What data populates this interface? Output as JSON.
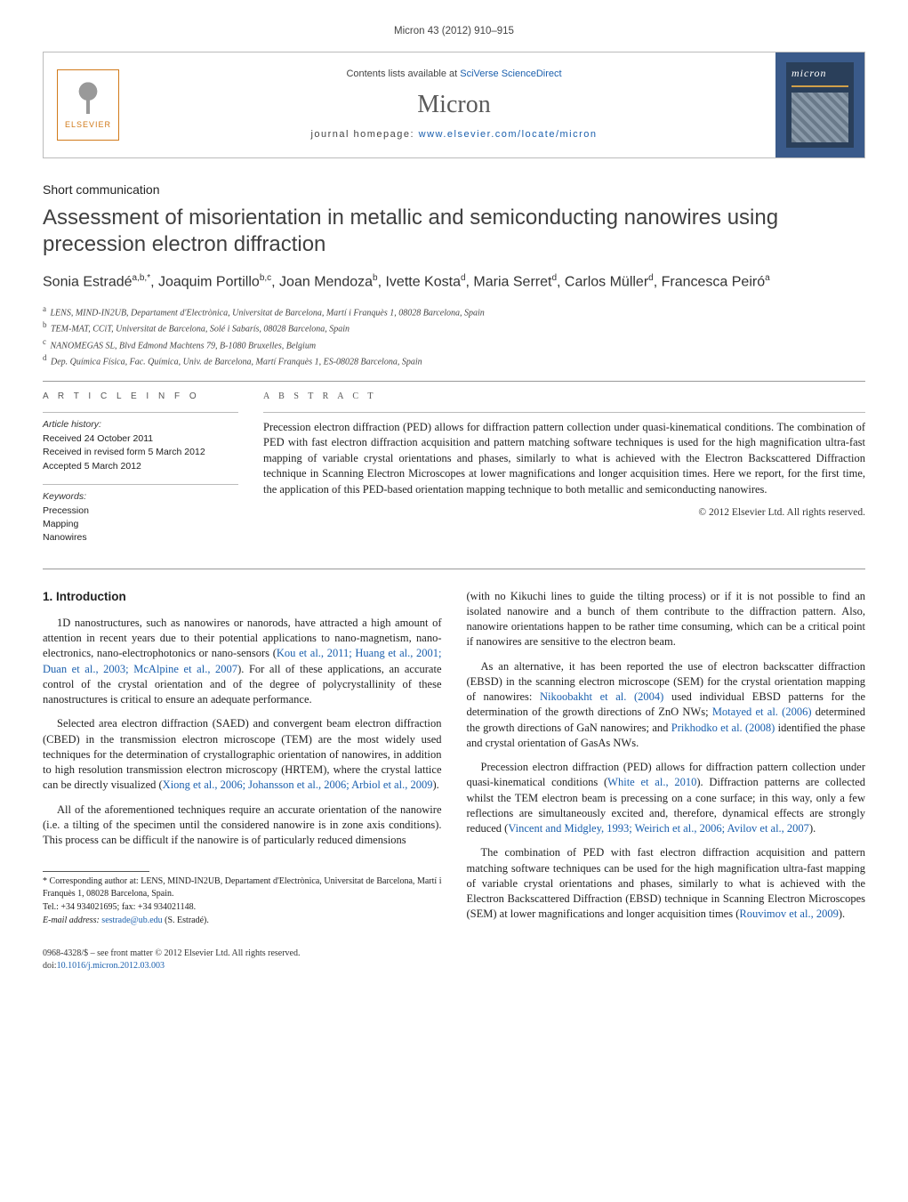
{
  "header": {
    "citation": "Micron 43 (2012) 910–915"
  },
  "banner": {
    "contents_prefix": "Contents lists available at ",
    "contents_link": "SciVerse ScienceDirect",
    "journal_name": "Micron",
    "homepage_prefix": "journal homepage: ",
    "homepage_link": "www.elsevier.com/locate/micron",
    "publisher_logo_text": "ELSEVIER",
    "cover_title": "micron"
  },
  "article": {
    "type": "Short communication",
    "title": "Assessment of misorientation in metallic and semiconducting nanowires using precession electron diffraction"
  },
  "authors_html": "Sonia Estradé<sup>a,b,*</sup>, Joaquim Portillo<sup>b,c</sup>, Joan Mendoza<sup>b</sup>, Ivette Kosta<sup>d</sup>, Maria Serret<sup>d</sup>, Carlos Müller<sup>d</sup>, Francesca Peiró<sup>a</sup>",
  "affiliations": [
    {
      "sup": "a",
      "text": "LENS, MIND-IN2UB, Departament d'Electrònica, Universitat de Barcelona, Martí i Franquès 1, 08028 Barcelona, Spain"
    },
    {
      "sup": "b",
      "text": "TEM-MAT, CCiT, Universitat de Barcelona, Solé i Sabarís, 08028 Barcelona, Spain"
    },
    {
      "sup": "c",
      "text": "NANOMEGAS SL, Blvd Edmond Machtens 79, B-1080 Bruxelles, Belgium"
    },
    {
      "sup": "d",
      "text": "Dep. Química Física, Fac. Química, Univ. de Barcelona, Martí Franquès 1, ES-08028 Barcelona, Spain"
    }
  ],
  "article_info": {
    "section_label": "a r t i c l e   i n f o",
    "history_label": "Article history:",
    "history": [
      "Received 24 October 2011",
      "Received in revised form 5 March 2012",
      "Accepted 5 March 2012"
    ],
    "keywords_label": "Keywords:",
    "keywords": [
      "Precession",
      "Mapping",
      "Nanowires"
    ]
  },
  "abstract": {
    "label": "a b s t r a c t",
    "text": "Precession electron diffraction (PED) allows for diffraction pattern collection under quasi-kinematical conditions. The combination of PED with fast electron diffraction acquisition and pattern matching software techniques is used for the high magnification ultra-fast mapping of variable crystal orientations and phases, similarly to what is achieved with the Electron Backscattered Diffraction technique in Scanning Electron Microscopes at lower magnifications and longer acquisition times. Here we report, for the first time, the application of this PED-based orientation mapping technique to both metallic and semiconducting nanowires.",
    "copyright": "© 2012 Elsevier Ltd. All rights reserved."
  },
  "body": {
    "intro_heading": "1. Introduction",
    "p1_pre": "1D nanostructures, such as nanowires or nanorods, have attracted a high amount of attention in recent years due to their potential applications to nano-magnetism, nano-electronics, nano-electrophotonics or nano-sensors (",
    "p1_link": "Kou et al., 2011; Huang et al., 2001; Duan et al., 2003; McAlpine et al., 2007",
    "p1_post": "). For all of these applications, an accurate control of the crystal orientation and of the degree of polycrystallinity of these nanostructures is critical to ensure an adequate performance.",
    "p2_pre": "Selected area electron diffraction (SAED) and convergent beam electron diffraction (CBED) in the transmission electron microscope (TEM) are the most widely used techniques for the determination of crystallographic orientation of nanowires, in addition to high resolution transmission electron microscopy (HRTEM), where the crystal lattice can be directly visualized (",
    "p2_link": "Xiong et al., 2006; Johansson et al., 2006; Arbiol et al., 2009",
    "p2_post": ").",
    "p3": "All of the aforementioned techniques require an accurate orientation of the nanowire (i.e. a tilting of the specimen until the considered nanowire is in zone axis conditions). This process can be difficult if the nanowire is of particularly reduced dimensions",
    "p3b": "(with no Kikuchi lines to guide the tilting process) or if it is not possible to find an isolated nanowire and a bunch of them contribute to the diffraction pattern. Also, nanowire orientations happen to be rather time consuming, which can be a critical point if nanowires are sensitive to the electron beam.",
    "p4_pre": "As an alternative, it has been reported the use of electron backscatter diffraction (EBSD) in the scanning electron microscope (SEM) for the crystal orientation mapping of nanowires: ",
    "p4_l1": "Nikoobakht et al. (2004)",
    "p4_m1": " used individual EBSD patterns for the determination of the growth directions of ZnO NWs; ",
    "p4_l2": "Motayed et al. (2006)",
    "p4_m2": " determined the growth directions of GaN nanowires; and ",
    "p4_l3": "Prikhodko et al. (2008)",
    "p4_m3": " identified the phase and crystal orientation of GasAs NWs.",
    "p5_pre": "Precession electron diffraction (PED) allows for diffraction pattern collection under quasi-kinematical conditions (",
    "p5_l1": "White et al., 2010",
    "p5_m1": "). Diffraction patterns are collected whilst the TEM electron beam is precessing on a cone surface; in this way, only a few reflections are simultaneously excited and, therefore, dynamical effects are strongly reduced (",
    "p5_l2": "Vincent and Midgley, 1993; Weirich et al., 2006; Avilov et al., 2007",
    "p5_post": ").",
    "p6_pre": "The combination of PED with fast electron diffraction acquisition and pattern matching software techniques can be used for the high magnification ultra-fast mapping of variable crystal orientations and phases, similarly to what is achieved with the Electron Backscattered Diffraction (EBSD) technique in Scanning Electron Microscopes (SEM) at lower magnifications and longer acquisition times (",
    "p6_link": "Rouvimov et al., 2009",
    "p6_post": ")."
  },
  "footnote": {
    "corr_label": "* Corresponding author at: LENS, MIND-IN2UB, Departament d'Electrònica, Universitat de Barcelona, Martí i Franquès 1, 08028 Barcelona, Spain.",
    "tel": "Tel.: +34 934021695; fax: +34 934021148.",
    "email_label": "E-mail address: ",
    "email": "sestrade@ub.edu",
    "email_suffix": " (S. Estradé)."
  },
  "footer": {
    "line1": "0968-4328/$ – see front matter © 2012 Elsevier Ltd. All rights reserved.",
    "doi_prefix": "doi:",
    "doi": "10.1016/j.micron.2012.03.003"
  },
  "colors": {
    "link": "#1a5fad",
    "elsevier_orange": "#d17a1a",
    "cover_bg": "#2a3f5a",
    "rule": "#999999"
  }
}
